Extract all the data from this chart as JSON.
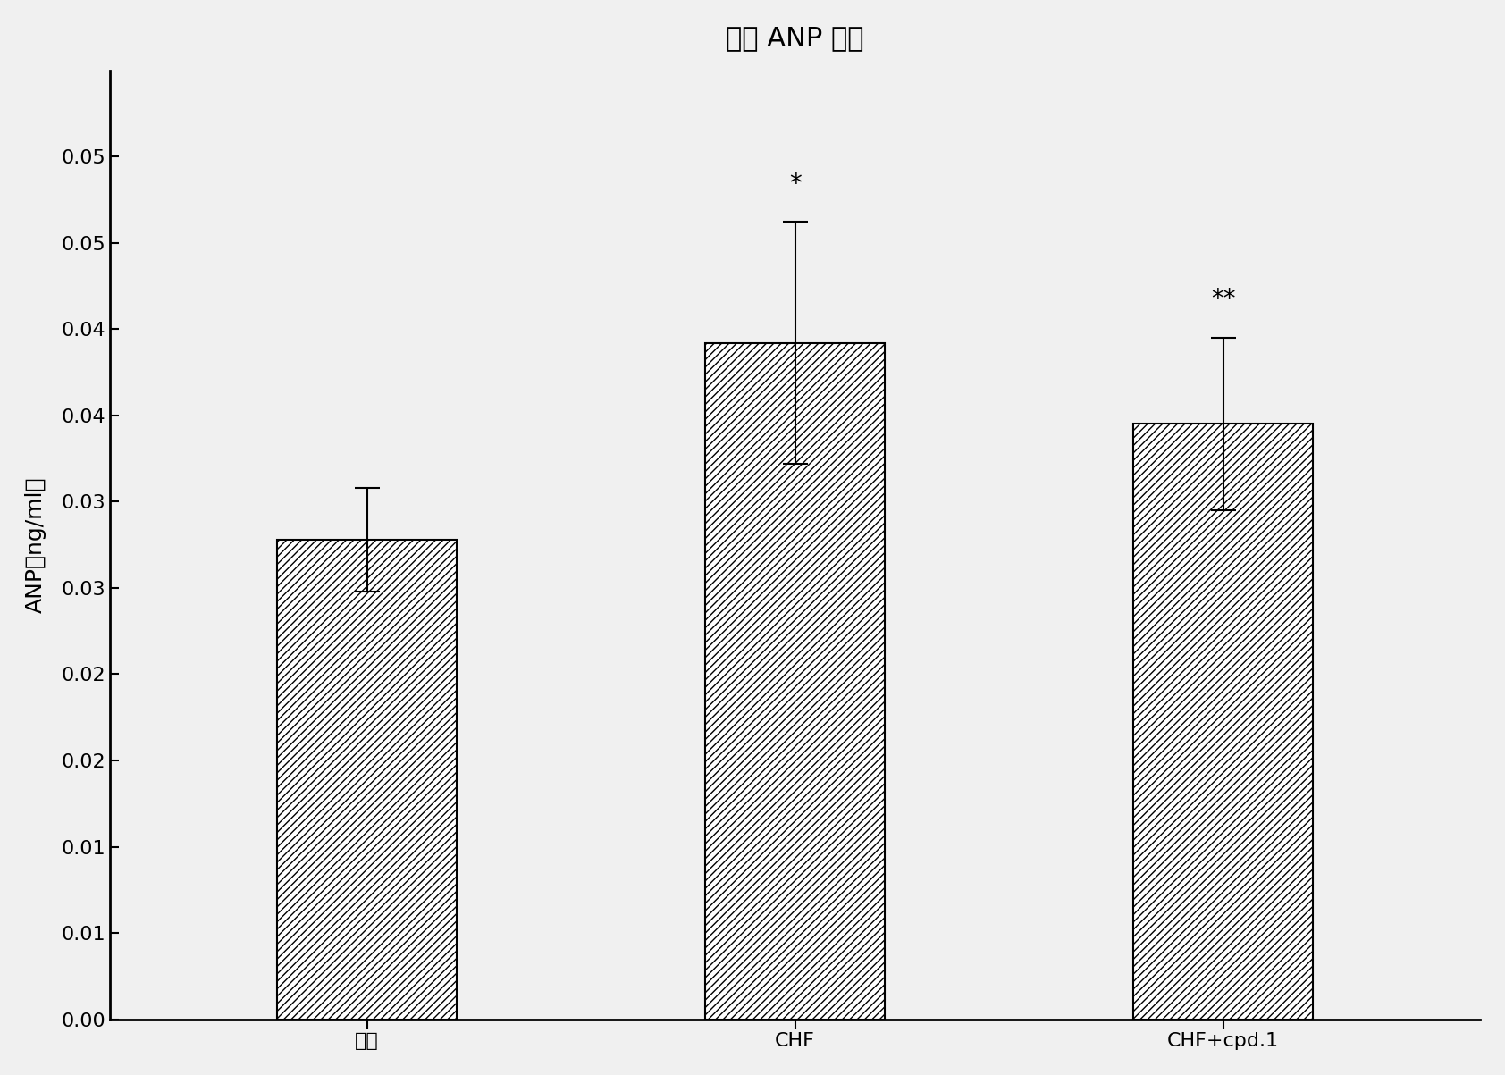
{
  "title": "血清 ANP 水平",
  "xlabel_groups": [
    "正常",
    "CHF",
    "CHF+cpd.1"
  ],
  "ylabel": "ANP（ng/ml）",
  "values": [
    0.0278,
    0.0392,
    0.0345
  ],
  "errors": [
    0.003,
    0.007,
    0.005
  ],
  "annotations": [
    "",
    "*",
    "**"
  ],
  "ylim": [
    0,
    0.055
  ],
  "ytick_positions": [
    0.0,
    0.005,
    0.01,
    0.015,
    0.02,
    0.025,
    0.03,
    0.035,
    0.04,
    0.045,
    0.05
  ],
  "ytick_labels": [
    "0.00",
    "0.01",
    "0.01",
    "0.02",
    "0.02",
    "0.03",
    "0.03",
    "0.04",
    "0.04",
    "0.05",
    "0.05"
  ],
  "bar_color": "#ffffff",
  "hatch": "////",
  "edge_color": "#000000",
  "title_fontsize": 22,
  "label_fontsize": 18,
  "tick_fontsize": 16,
  "annot_fontsize": 20,
  "bar_width": 0.42
}
